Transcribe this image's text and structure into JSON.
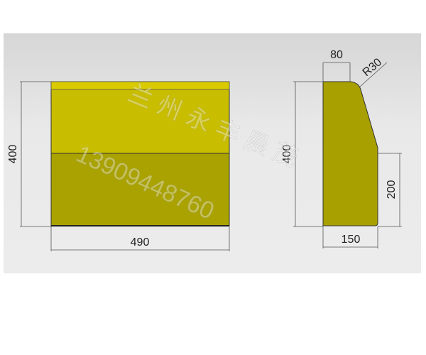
{
  "front_view": {
    "width_label": "490",
    "height_label": "400"
  },
  "side_view": {
    "top_width_label": "80",
    "radius_label": "R30",
    "height_label": "400",
    "lower_height_label": "200",
    "bottom_width_label": "150"
  },
  "watermark": {
    "name": "兰州永丰晨茂",
    "phone": "13909448760"
  },
  "colors": {
    "top_face": "#d2c400",
    "front_face": "#a9a200",
    "side_face": "#a8a000",
    "background": "#e6e6e6"
  }
}
